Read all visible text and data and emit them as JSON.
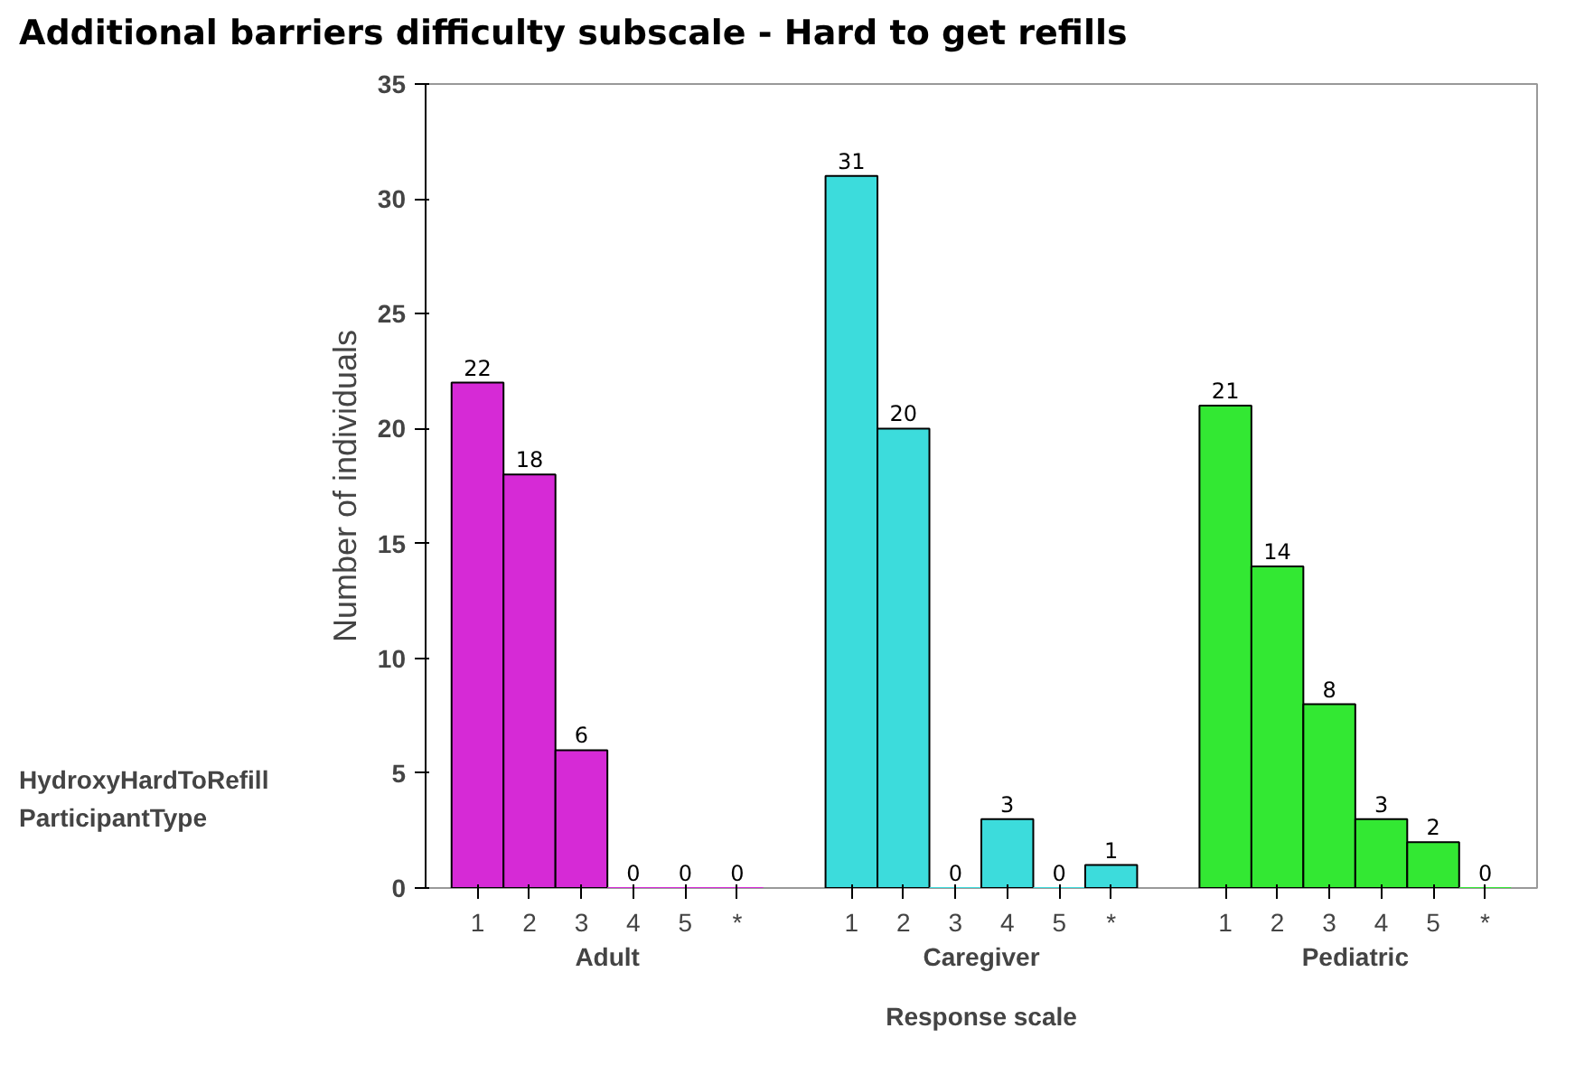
{
  "chart_data": {
    "type": "bar",
    "title": "Additional barriers difficulty subscale - Hard to get refills",
    "xlabel": "Response scale",
    "ylabel": "Number of individuals",
    "categories": [
      "1",
      "2",
      "3",
      "4",
      "5",
      "*",
      "1",
      "2",
      "3",
      "4",
      "5",
      "*",
      "1",
      "2",
      "3",
      "4",
      "5",
      "*"
    ],
    "series": [
      {
        "name": "Adult",
        "color": "#d62ad6",
        "values": [
          22,
          18,
          6,
          0,
          0,
          0,
          null,
          null,
          null,
          null,
          null,
          null,
          null,
          null,
          null,
          null,
          null,
          null
        ]
      },
      {
        "name": "Caregiver",
        "color": "#3cdcdc",
        "values": [
          null,
          null,
          null,
          null,
          null,
          null,
          31,
          20,
          0,
          3,
          0,
          1,
          null,
          null,
          null,
          null,
          null,
          null
        ]
      },
      {
        "name": "Pediatric",
        "color": "#33e833",
        "values": [
          null,
          null,
          null,
          null,
          null,
          null,
          null,
          null,
          null,
          null,
          null,
          null,
          21,
          14,
          8,
          3,
          2,
          0
        ]
      }
    ],
    "annotations": [
      "HydroxyHardToRefill",
      "ParticipantType"
    ],
    "ylim": [
      0,
      35
    ],
    "yticks": [
      0,
      5,
      10,
      15,
      20,
      25,
      30,
      35
    ],
    "data_labels": true,
    "grid": false
  }
}
